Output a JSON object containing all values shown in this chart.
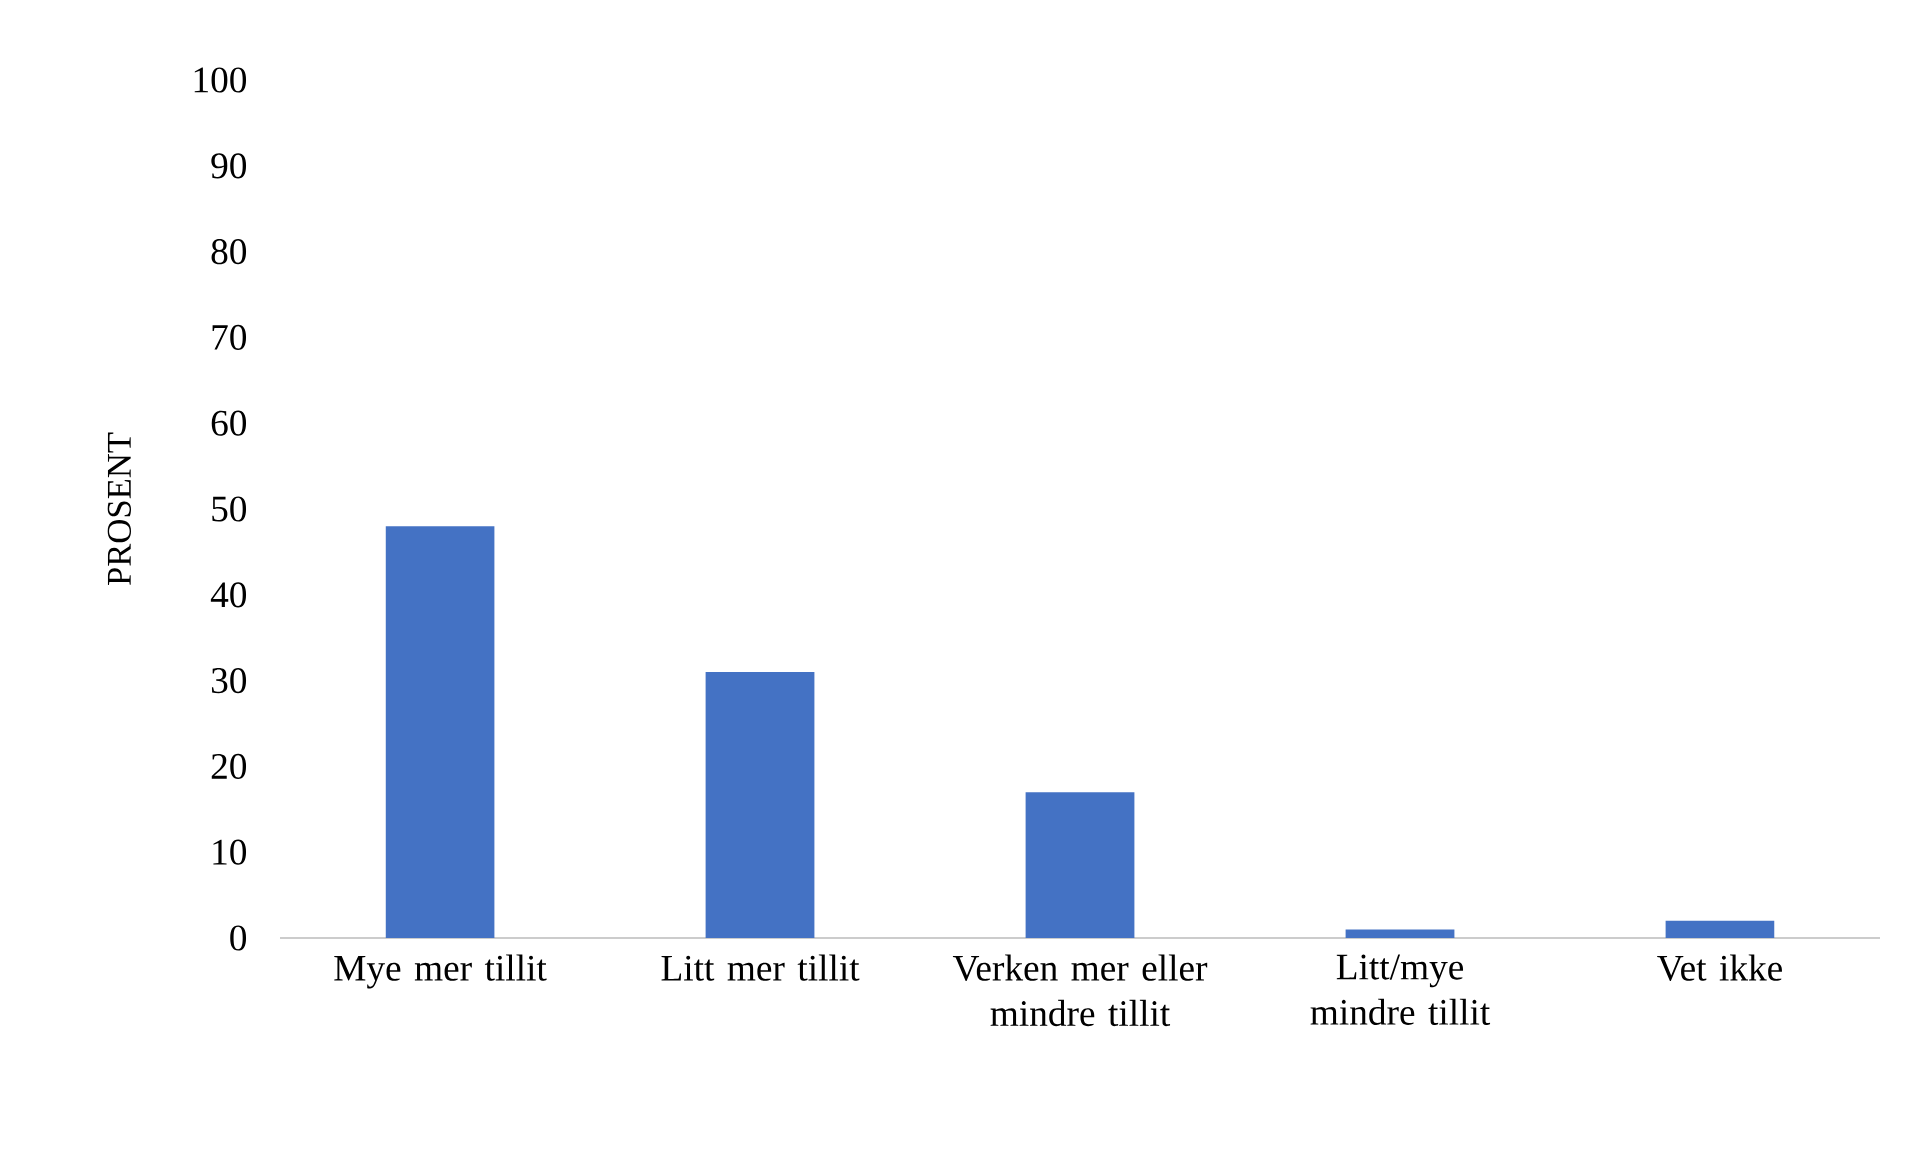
{
  "chart_data": {
    "type": "bar",
    "ylabel": "PROSENT",
    "categories": [
      "Mye mer tillit",
      "Litt mer tillit",
      "Verken mer eller mindre tillit",
      "Litt/mye mindre tillit",
      "Vet ikke"
    ],
    "values": [
      48,
      31,
      17,
      1,
      2
    ],
    "color": "#4472c4",
    "ylim": [
      0,
      100
    ],
    "yticks": [
      0,
      10,
      20,
      30,
      40,
      50,
      60,
      70,
      80,
      90,
      100
    ]
  }
}
